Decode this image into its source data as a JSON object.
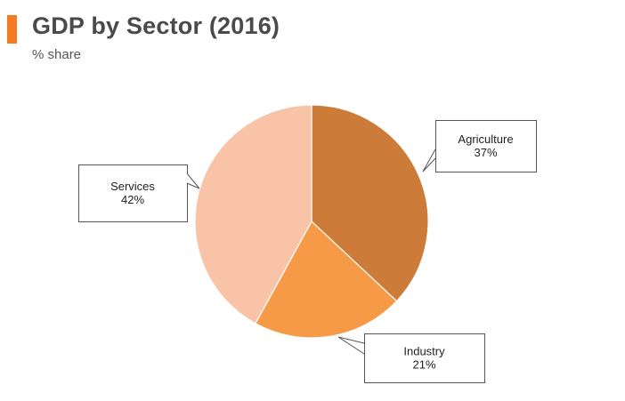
{
  "header": {
    "title": "GDP by Sector (2016)",
    "subtitle": "% share",
    "accent_color": "#f47b20"
  },
  "chart_data": {
    "type": "pie",
    "title": "GDP by Sector (2016)",
    "subtitle": "% share",
    "slices": [
      {
        "label": "Agriculture",
        "value": 37,
        "display": "37%",
        "color": "#cd7b38"
      },
      {
        "label": "Industry",
        "value": 21,
        "display": "21%",
        "color": "#f79a48"
      },
      {
        "label": "Services",
        "value": 42,
        "display": "42%",
        "color": "#f9c3a8"
      }
    ],
    "start_angle": "12 o'clock",
    "direction": "clockwise",
    "legend": "none",
    "labels": "callout boxes"
  }
}
